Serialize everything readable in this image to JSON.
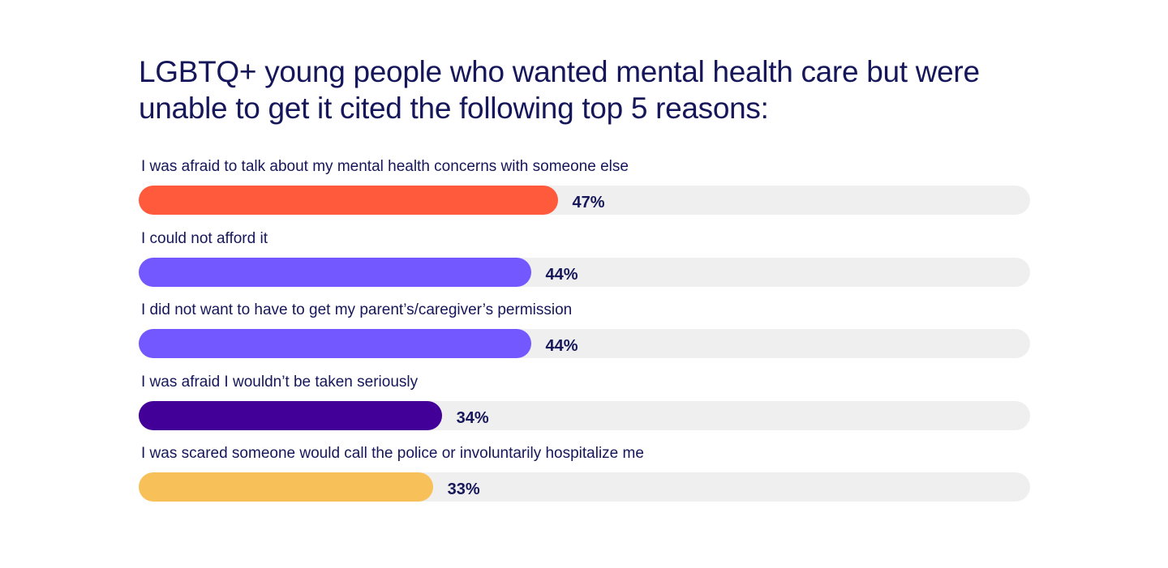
{
  "chart_data": {
    "type": "bar",
    "orientation": "horizontal",
    "title": "LGBTQ+ young people who wanted mental health care but were unable to get it cited the following top 5 reasons:",
    "categories": [
      "I was afraid to talk about my mental health concerns with someone else",
      "I could not afford it",
      "I did not want to have to get my parent’s/caregiver’s permission",
      "I was afraid I wouldn’t be taken seriously",
      "I was scared someone would call the police or involuntarily hospitalize me"
    ],
    "values": [
      47,
      44,
      44,
      34,
      33
    ],
    "value_labels": [
      "47%",
      "44%",
      "44%",
      "34%",
      "33%"
    ],
    "bar_colors": [
      "#ff5a3c",
      "#7357ff",
      "#7357ff",
      "#420099",
      "#f8c058"
    ],
    "track_color": "#efefef",
    "xlim": [
      0,
      100
    ],
    "grid": false,
    "legend": "none"
  }
}
